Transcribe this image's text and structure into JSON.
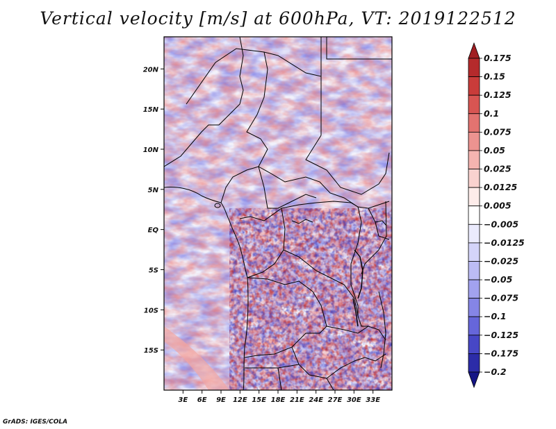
{
  "title": "Vertical velocity [m/s] at 600hPa, VT: 2019122512",
  "footer": "GrADS: IGES/COLA",
  "map": {
    "lon_range": [
      0,
      36
    ],
    "lat_range": [
      -20,
      24
    ],
    "lon_ticks": [
      "3E",
      "6E",
      "9E",
      "12E",
      "15E",
      "18E",
      "21E",
      "24E",
      "27E",
      "30E",
      "33E"
    ],
    "lat_ticks": [
      "20N",
      "15N",
      "10N",
      "5N",
      "EQ",
      "5S",
      "10S",
      "15S"
    ]
  },
  "colorbar": {
    "labels": [
      "0.175",
      "0.15",
      "0.125",
      "0.1",
      "0.075",
      "0.05",
      "0.025",
      "0.0125",
      "0.005",
      "−0.005",
      "−0.0125",
      "−0.025",
      "−0.05",
      "−0.075",
      "−0.1",
      "−0.125",
      "−0.175",
      "−0.2"
    ],
    "colors": [
      "#a11e22",
      "#b52a2c",
      "#c93c3a",
      "#d85552",
      "#e37370",
      "#ec9390",
      "#f4b4b0",
      "#f9d2cf",
      "#fdecea",
      "#ffffff",
      "#ebebfd",
      "#d4d4f9",
      "#bcbcf5",
      "#a2a2ef",
      "#8585e6",
      "#6666da",
      "#4747c6",
      "#2c2ca8",
      "#151585"
    ]
  }
}
